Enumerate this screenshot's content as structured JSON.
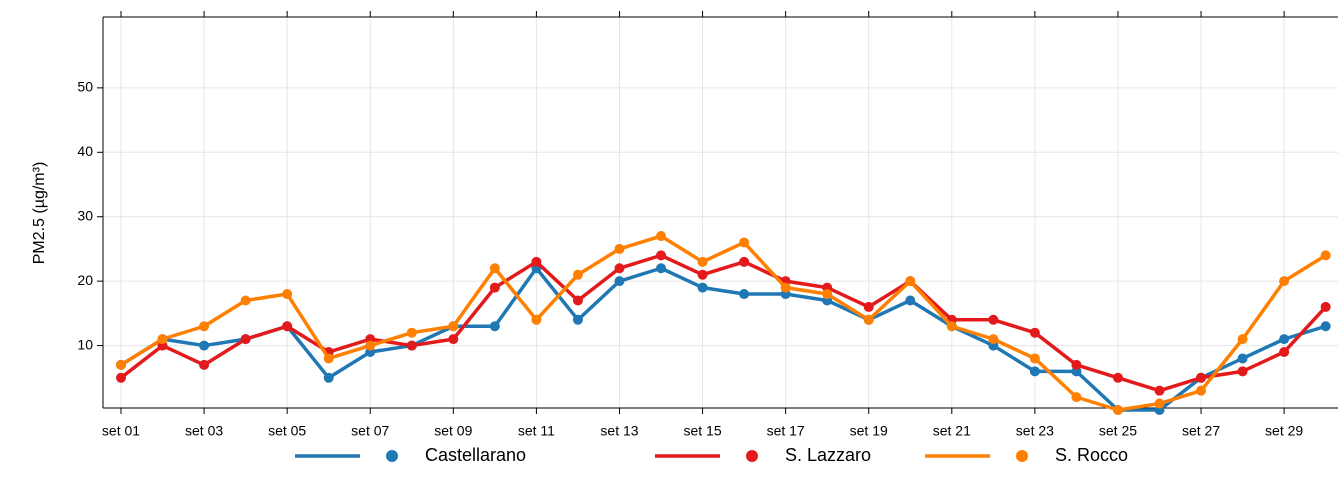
{
  "chart_data": {
    "type": "line",
    "y_label": "PM2.5 (µg/m³)",
    "categories": [
      "set 01",
      null,
      "set 03",
      null,
      "set 05",
      null,
      "set 07",
      null,
      "set 09",
      null,
      "set 11",
      null,
      "set 13",
      null,
      "set 15",
      null,
      "set 17",
      null,
      "set 19",
      null,
      "set 21",
      null,
      "set 23",
      null,
      "set 25",
      null,
      "set 27",
      null,
      "set 29",
      null
    ],
    "series": [
      {
        "name": "Castellarano",
        "color": "#1f78b4",
        "values": [
          7,
          11,
          10,
          11,
          13,
          5,
          9,
          10,
          13,
          13,
          22,
          14,
          20,
          22,
          19,
          18,
          18,
          17,
          14,
          17,
          13,
          10,
          6,
          6,
          0,
          0,
          5,
          8,
          11,
          13
        ]
      },
      {
        "name": "S. Lazzaro",
        "color": "#e31a1c",
        "values": [
          5,
          10,
          7,
          11,
          13,
          9,
          11,
          10,
          11,
          19,
          23,
          17,
          22,
          24,
          21,
          23,
          20,
          19,
          16,
          20,
          14,
          14,
          12,
          7,
          5,
          3,
          5,
          6,
          9,
          16
        ]
      },
      {
        "name": "S. Rocco",
        "color": "#ff7f00",
        "values": [
          7,
          11,
          13,
          17,
          18,
          8,
          10,
          12,
          13,
          22,
          14,
          21,
          25,
          27,
          23,
          26,
          19,
          18,
          14,
          20,
          13,
          11,
          8,
          2,
          0,
          1,
          3,
          11,
          20,
          24
        ]
      }
    ],
    "ylim": [
      0,
      61
    ],
    "yticks": [
      10,
      20,
      30,
      40,
      50
    ],
    "grid": true,
    "legend": "bottom"
  }
}
